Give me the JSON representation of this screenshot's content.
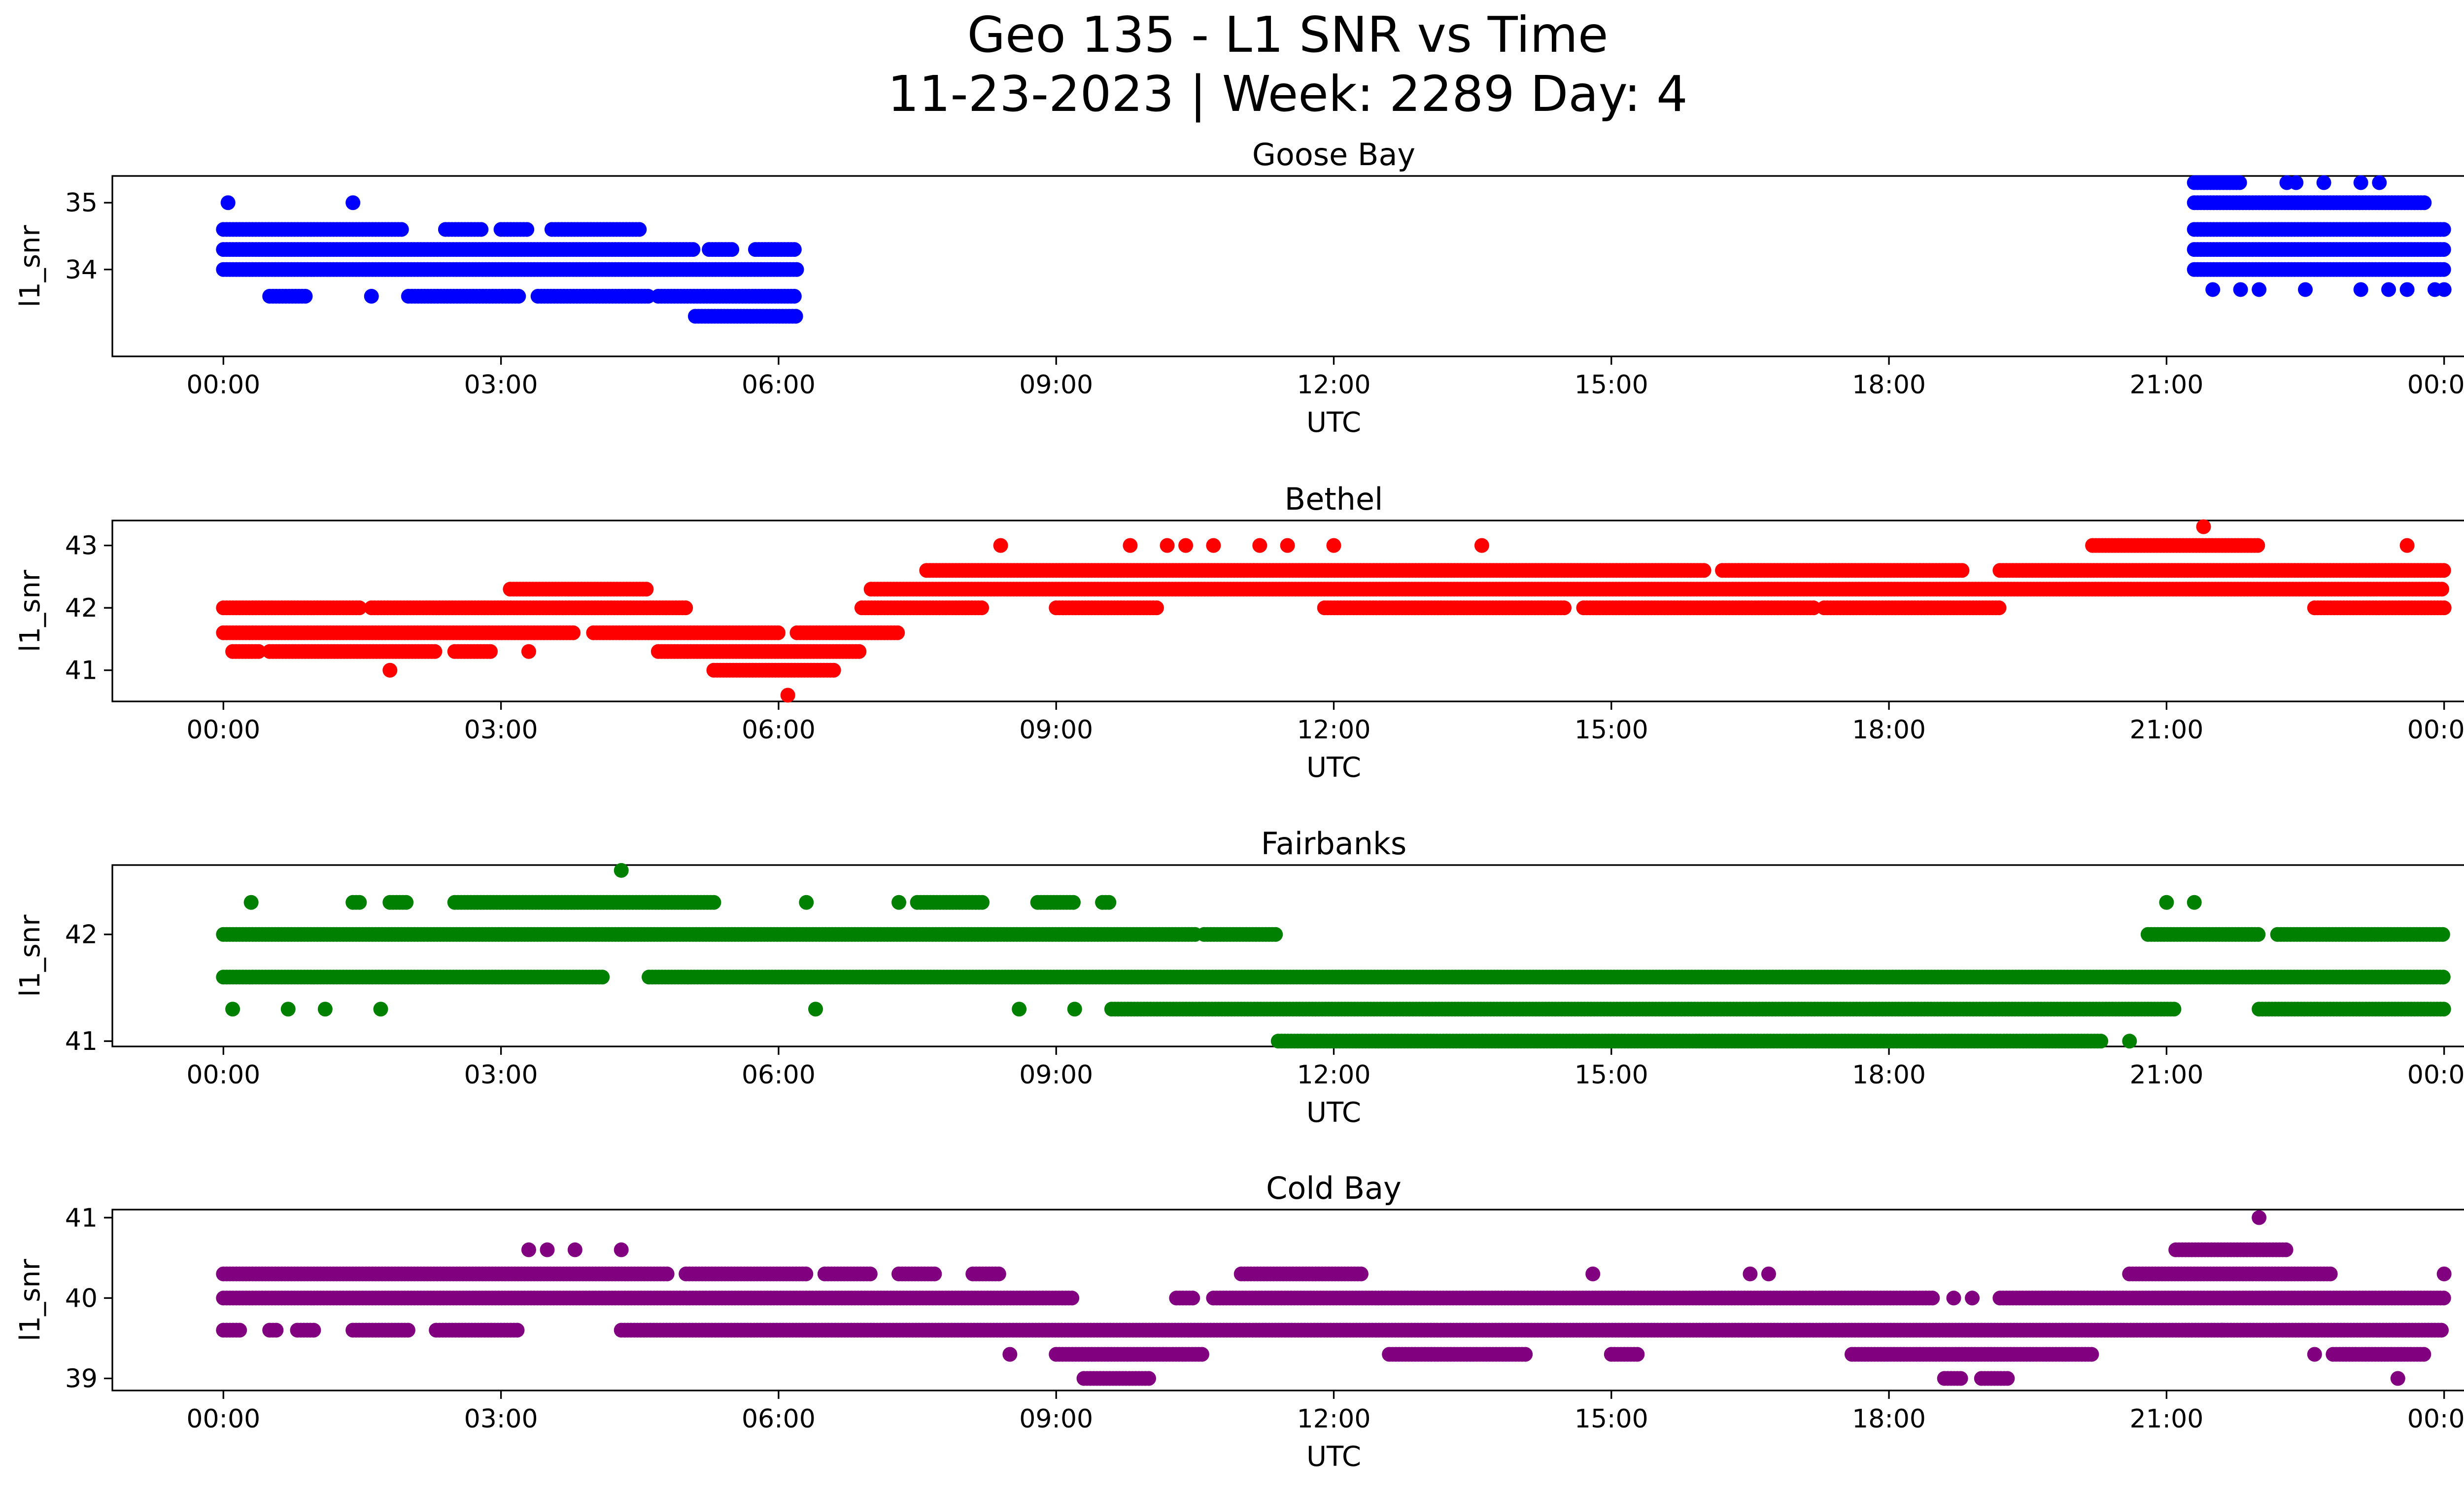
{
  "figure": {
    "title_line1": "Geo 135 - L1 SNR vs Time",
    "title_line2": "11-23-2023 | Week: 2289 Day: 4"
  },
  "chart_data": [
    {
      "type": "scatter",
      "title": "Goose Bay",
      "xlabel": "UTC",
      "ylabel": "l1_snr",
      "color": "#0000ff",
      "x_ticks": [
        "00:00",
        "03:00",
        "06:00",
        "09:00",
        "12:00",
        "15:00",
        "18:00",
        "21:00",
        "00:00"
      ],
      "x_tick_hours": [
        0,
        3,
        6,
        9,
        12,
        15,
        18,
        21,
        24
      ],
      "y_ticks": [
        34,
        35
      ],
      "xlim_hours": [
        -1.2,
        25.2
      ],
      "ylim": [
        32.7,
        35.4
      ],
      "series": [
        {
          "y": 34.0,
          "segments": [
            [
              0.0,
              6.2
            ],
            [
              21.3,
              24.0
            ]
          ]
        },
        {
          "y": 34.3,
          "segments": [
            [
              0.0,
              5.1
            ],
            [
              5.25,
              5.5
            ],
            [
              5.75,
              6.2
            ],
            [
              21.3,
              24.0
            ]
          ]
        },
        {
          "y": 34.6,
          "segments": [
            [
              0.0,
              1.95
            ],
            [
              2.4,
              2.8
            ],
            [
              3.0,
              3.3
            ],
            [
              3.55,
              4.5
            ],
            [
              21.3,
              24.0
            ]
          ]
        },
        {
          "y": 35.0,
          "segments": [
            [
              21.3,
              23.8
            ]
          ]
        },
        {
          "y": 33.6,
          "segments": [
            [
              0.5,
              0.9
            ],
            [
              2.0,
              3.2
            ],
            [
              3.4,
              4.6
            ],
            [
              4.7,
              6.2
            ]
          ]
        },
        {
          "y": 33.3,
          "segments": [
            [
              5.1,
              6.2
            ]
          ]
        },
        {
          "y": 35.3,
          "segments": [
            [
              21.3,
              21.8
            ]
          ]
        }
      ],
      "points": [
        [
          0.05,
          35.0
        ],
        [
          1.4,
          35.0
        ],
        [
          1.6,
          33.6
        ],
        [
          22.3,
          35.3
        ],
        [
          22.4,
          35.3
        ],
        [
          22.7,
          35.3
        ],
        [
          23.1,
          35.3
        ],
        [
          23.3,
          35.3
        ],
        [
          21.5,
          33.7
        ],
        [
          21.8,
          33.7
        ],
        [
          22.0,
          33.7
        ],
        [
          22.5,
          33.7
        ],
        [
          23.1,
          33.7
        ],
        [
          23.4,
          33.7
        ],
        [
          23.6,
          33.7
        ],
        [
          23.9,
          33.7
        ],
        [
          24.0,
          33.7
        ]
      ]
    },
    {
      "type": "scatter",
      "title": "Bethel",
      "xlabel": "UTC",
      "ylabel": "l1_snr",
      "color": "#ff0000",
      "x_ticks": [
        "00:00",
        "03:00",
        "06:00",
        "09:00",
        "12:00",
        "15:00",
        "18:00",
        "21:00",
        "00:00"
      ],
      "x_tick_hours": [
        0,
        3,
        6,
        9,
        12,
        15,
        18,
        21,
        24
      ],
      "y_ticks": [
        41,
        42,
        43
      ],
      "xlim_hours": [
        -1.2,
        25.2
      ],
      "ylim": [
        40.5,
        43.4
      ],
      "series": [
        {
          "y": 41.3,
          "segments": [
            [
              0.1,
              0.4
            ],
            [
              0.5,
              2.3
            ],
            [
              2.5,
              2.9
            ],
            [
              4.7,
              6.9
            ]
          ]
        },
        {
          "y": 41.6,
          "segments": [
            [
              0.0,
              3.8
            ],
            [
              4.0,
              6.0
            ],
            [
              6.2,
              7.3
            ]
          ]
        },
        {
          "y": 42.0,
          "segments": [
            [
              0.0,
              1.5
            ],
            [
              1.6,
              5.0
            ],
            [
              6.9,
              8.2
            ],
            [
              9.0,
              10.1
            ],
            [
              11.9,
              14.5
            ],
            [
              14.7,
              17.2
            ],
            [
              17.3,
              19.2
            ],
            [
              22.6,
              24.0
            ]
          ]
        },
        {
          "y": 42.3,
          "segments": [
            [
              3.1,
              4.6
            ],
            [
              7.0,
              24.0
            ]
          ]
        },
        {
          "y": 42.6,
          "segments": [
            [
              7.6,
              16.0
            ],
            [
              16.2,
              18.8
            ],
            [
              19.2,
              24.0
            ]
          ]
        },
        {
          "y": 41.0,
          "segments": [
            [
              5.3,
              6.6
            ]
          ]
        },
        {
          "y": 43.0,
          "segments": [
            [
              20.2,
              22.0
            ]
          ]
        }
      ],
      "points": [
        [
          1.8,
          41.0
        ],
        [
          3.3,
          41.3
        ],
        [
          6.1,
          40.6
        ],
        [
          8.4,
          43.0
        ],
        [
          9.8,
          43.0
        ],
        [
          10.2,
          43.0
        ],
        [
          10.4,
          43.0
        ],
        [
          10.7,
          43.0
        ],
        [
          11.2,
          43.0
        ],
        [
          11.5,
          43.0
        ],
        [
          12.0,
          43.0
        ],
        [
          13.6,
          43.0
        ],
        [
          21.4,
          43.3
        ],
        [
          23.6,
          43.0
        ]
      ]
    },
    {
      "type": "scatter",
      "title": "Fairbanks",
      "xlabel": "UTC",
      "ylabel": "l1_snr",
      "color": "#008000",
      "x_ticks": [
        "00:00",
        "03:00",
        "06:00",
        "09:00",
        "12:00",
        "15:00",
        "18:00",
        "21:00",
        "00:00"
      ],
      "x_tick_hours": [
        0,
        3,
        6,
        9,
        12,
        15,
        18,
        21,
        24
      ],
      "y_ticks": [
        41,
        42
      ],
      "xlim_hours": [
        -1.2,
        25.2
      ],
      "ylim": [
        40.95,
        42.65
      ],
      "series": [
        {
          "y": 42.0,
          "segments": [
            [
              0.0,
              10.5
            ],
            [
              10.6,
              11.4
            ],
            [
              20.8,
              22.0
            ],
            [
              22.2,
              24.0
            ]
          ]
        },
        {
          "y": 41.6,
          "segments": [
            [
              0.0,
              4.1
            ],
            [
              4.6,
              24.0
            ]
          ]
        },
        {
          "y": 41.3,
          "segments": [
            [
              9.6,
              21.1
            ],
            [
              22.0,
              24.0
            ]
          ]
        },
        {
          "y": 41.0,
          "segments": [
            [
              11.4,
              20.3
            ]
          ]
        },
        {
          "y": 42.3,
          "segments": [
            [
              1.4,
              1.5
            ],
            [
              1.8,
              2.0
            ],
            [
              2.5,
              5.3
            ],
            [
              7.5,
              8.2
            ],
            [
              8.8,
              9.2
            ],
            [
              9.5,
              9.6
            ]
          ]
        }
      ],
      "points": [
        [
          0.1,
          41.3
        ],
        [
          0.7,
          41.3
        ],
        [
          1.1,
          41.3
        ],
        [
          1.7,
          41.3
        ],
        [
          0.3,
          42.3
        ],
        [
          4.3,
          42.6
        ],
        [
          6.4,
          41.3
        ],
        [
          8.6,
          41.3
        ],
        [
          9.2,
          41.3
        ],
        [
          6.3,
          42.3
        ],
        [
          7.3,
          42.3
        ],
        [
          20.6,
          41.0
        ],
        [
          21.0,
          42.3
        ],
        [
          21.3,
          42.3
        ]
      ]
    },
    {
      "type": "scatter",
      "title": "Cold Bay",
      "xlabel": "UTC",
      "ylabel": "l1_snr",
      "color": "#800080",
      "x_ticks": [
        "00:00",
        "03:00",
        "06:00",
        "09:00",
        "12:00",
        "15:00",
        "18:00",
        "21:00",
        "00:00"
      ],
      "x_tick_hours": [
        0,
        3,
        6,
        9,
        12,
        15,
        18,
        21,
        24
      ],
      "y_ticks": [
        39,
        40,
        41
      ],
      "xlim_hours": [
        -1.2,
        25.2
      ],
      "ylim": [
        38.85,
        41.1
      ],
      "series": [
        {
          "y": 40.3,
          "segments": [
            [
              0.0,
              4.8
            ],
            [
              5.0,
              6.3
            ],
            [
              6.5,
              7.0
            ],
            [
              7.3,
              7.7
            ],
            [
              8.1,
              8.4
            ],
            [
              11.0,
              12.3
            ],
            [
              20.6,
              22.8
            ]
          ]
        },
        {
          "y": 40.0,
          "segments": [
            [
              0.0,
              9.2
            ],
            [
              10.3,
              10.5
            ],
            [
              10.7,
              18.5
            ],
            [
              19.2,
              24.0
            ]
          ]
        },
        {
          "y": 39.6,
          "segments": [
            [
              0.0,
              0.2
            ],
            [
              0.5,
              0.6
            ],
            [
              0.8,
              1.0
            ],
            [
              1.4,
              2.0
            ],
            [
              2.3,
              3.2
            ],
            [
              4.3,
              24.0
            ]
          ]
        },
        {
          "y": 39.3,
          "segments": [
            [
              9.0,
              10.6
            ],
            [
              12.6,
              14.1
            ],
            [
              15.0,
              15.3
            ],
            [
              17.6,
              20.2
            ],
            [
              22.8,
              23.8
            ]
          ]
        },
        {
          "y": 39.0,
          "segments": [
            [
              9.3,
              10.0
            ],
            [
              18.6,
              18.8
            ],
            [
              19.0,
              19.3
            ]
          ]
        },
        {
          "y": 40.6,
          "segments": [
            [
              21.1,
              22.3
            ]
          ]
        }
      ],
      "points": [
        [
          3.3,
          40.6
        ],
        [
          3.5,
          40.6
        ],
        [
          3.8,
          40.6
        ],
        [
          4.3,
          40.6
        ],
        [
          8.5,
          39.3
        ],
        [
          14.8,
          40.3
        ],
        [
          16.5,
          40.3
        ],
        [
          16.7,
          40.3
        ],
        [
          22.0,
          41.0
        ],
        [
          23.5,
          39.0
        ],
        [
          21.6,
          39.6
        ],
        [
          18.7,
          40.0
        ],
        [
          18.9,
          40.0
        ],
        [
          22.6,
          39.3
        ],
        [
          24.0,
          40.3
        ]
      ]
    }
  ]
}
